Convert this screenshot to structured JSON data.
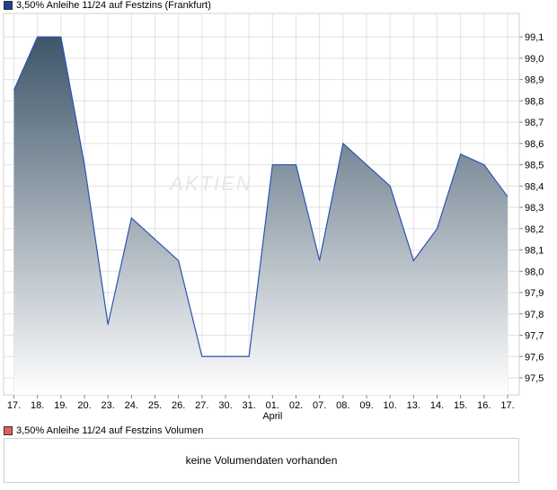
{
  "legend_main": {
    "label": "3,50% Anleihe 11/24 auf Festzins (Frankfurt)",
    "color": "#1f3f8f"
  },
  "legend_volume": {
    "label": "3,50% Anleihe 11/24 auf Festzins Volumen",
    "color": "#e06060"
  },
  "volume_message": "keine Volumendaten vorhanden",
  "watermark": "AKTIEN",
  "chart_data": {
    "type": "area",
    "categories": [
      "17.",
      "18.",
      "19.",
      "20.",
      "23.",
      "24.",
      "25.",
      "26.",
      "27.",
      "30.",
      "31.",
      "01.",
      "02.",
      "07.",
      "08.",
      "09.",
      "10.",
      "13.",
      "14.",
      "15.",
      "16.",
      "17."
    ],
    "month_labels": [
      {
        "index": 11,
        "label": "April"
      }
    ],
    "values": [
      98.85,
      99.1,
      99.1,
      98.5,
      97.75,
      98.25,
      98.15,
      98.05,
      97.6,
      97.6,
      97.6,
      98.5,
      98.5,
      98.05,
      98.6,
      98.5,
      98.4,
      98.05,
      98.2,
      98.55,
      98.5,
      98.35
    ],
    "yticks": [
      97.5,
      97.6,
      97.7,
      97.8,
      97.9,
      98.0,
      98.1,
      98.2,
      98.3,
      98.4,
      98.5,
      98.6,
      98.7,
      98.8,
      98.9,
      99.0,
      99.1
    ],
    "ytick_labels": [
      "97,5",
      "97,6",
      "97,7",
      "97,8",
      "97,9",
      "98,0",
      "98,1",
      "98,2",
      "98,3",
      "98,4",
      "98,5",
      "98,6",
      "98,7",
      "98,8",
      "98,9",
      "99,0",
      "99,1"
    ],
    "ylim": [
      97.42,
      99.21
    ],
    "grid": true,
    "line_color": "#2a55b0",
    "fill_top_color": "#3e5569",
    "fill_bottom_color": "#ffffff"
  }
}
